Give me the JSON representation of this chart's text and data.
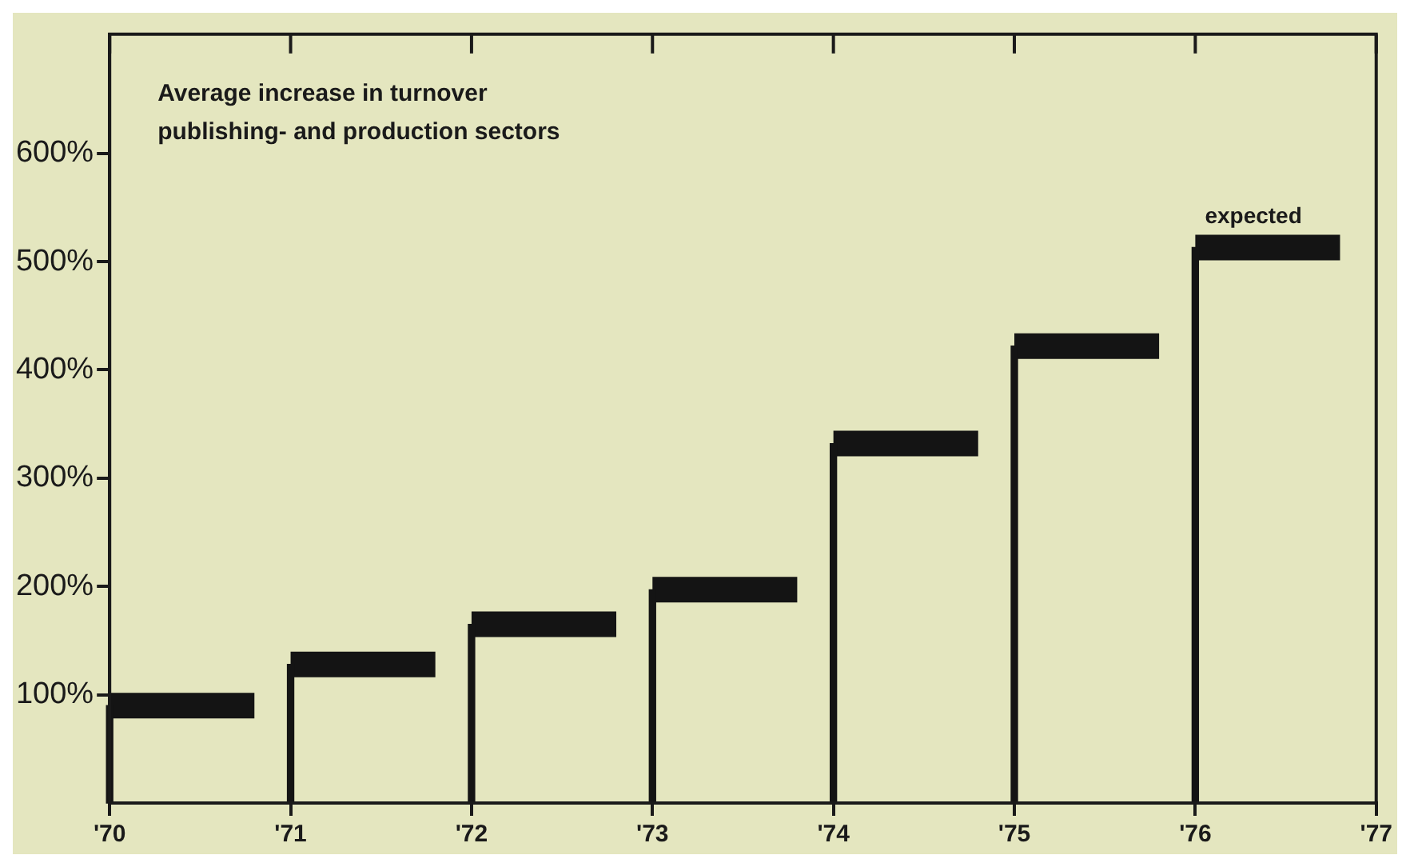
{
  "chart_data": {
    "type": "bar",
    "title": "Average increase in turnover\npublishing- and production sectors",
    "series": [
      {
        "color": "#141414",
        "x": [
          70,
          71,
          72,
          73,
          74,
          75,
          76
        ],
        "values": [
          90,
          128,
          165,
          197,
          332,
          422,
          513
        ]
      },
      {
        "type": "line",
        "color": "#141414",
        "x": [
          70,
          70.8,
          70.9,
          71,
          71.8,
          71.9,
          72,
          72.8,
          72.9,
          73,
          73.8,
          73.9,
          74,
          74.8,
          74.9,
          75,
          75.8,
          75.9,
          76,
          76.8
        ],
        "values": [
          90,
          90,
          null,
          128,
          128,
          null,
          165,
          165,
          null,
          197,
          197,
          null,
          332,
          332,
          null,
          422,
          422,
          null,
          513,
          513
        ]
      }
    ],
    "xlim": [
      70,
      77
    ],
    "xticks": [
      {
        "value": 70,
        "label": "'70"
      },
      {
        "value": 71,
        "label": "'71"
      },
      {
        "value": 72,
        "label": "'72"
      },
      {
        "value": 73,
        "label": "'73"
      },
      {
        "value": 74,
        "label": "'74"
      },
      {
        "value": 75,
        "label": "'75"
      },
      {
        "value": 76,
        "label": "'76"
      },
      {
        "value": 77,
        "label": "'77"
      }
    ],
    "ylim": [
      0,
      710
    ],
    "yticks": [
      {
        "value": 100,
        "label": "100%"
      },
      {
        "value": 200,
        "label": "200%"
      },
      {
        "value": 300,
        "label": "300%"
      },
      {
        "value": 400,
        "label": "400%"
      },
      {
        "value": 500,
        "label": "500%"
      },
      {
        "value": 600,
        "label": "600%"
      }
    ],
    "annotations": [
      "expected"
    ],
    "marker": "none",
    "line_style": "solid",
    "grid": false,
    "legend": false
  }
}
